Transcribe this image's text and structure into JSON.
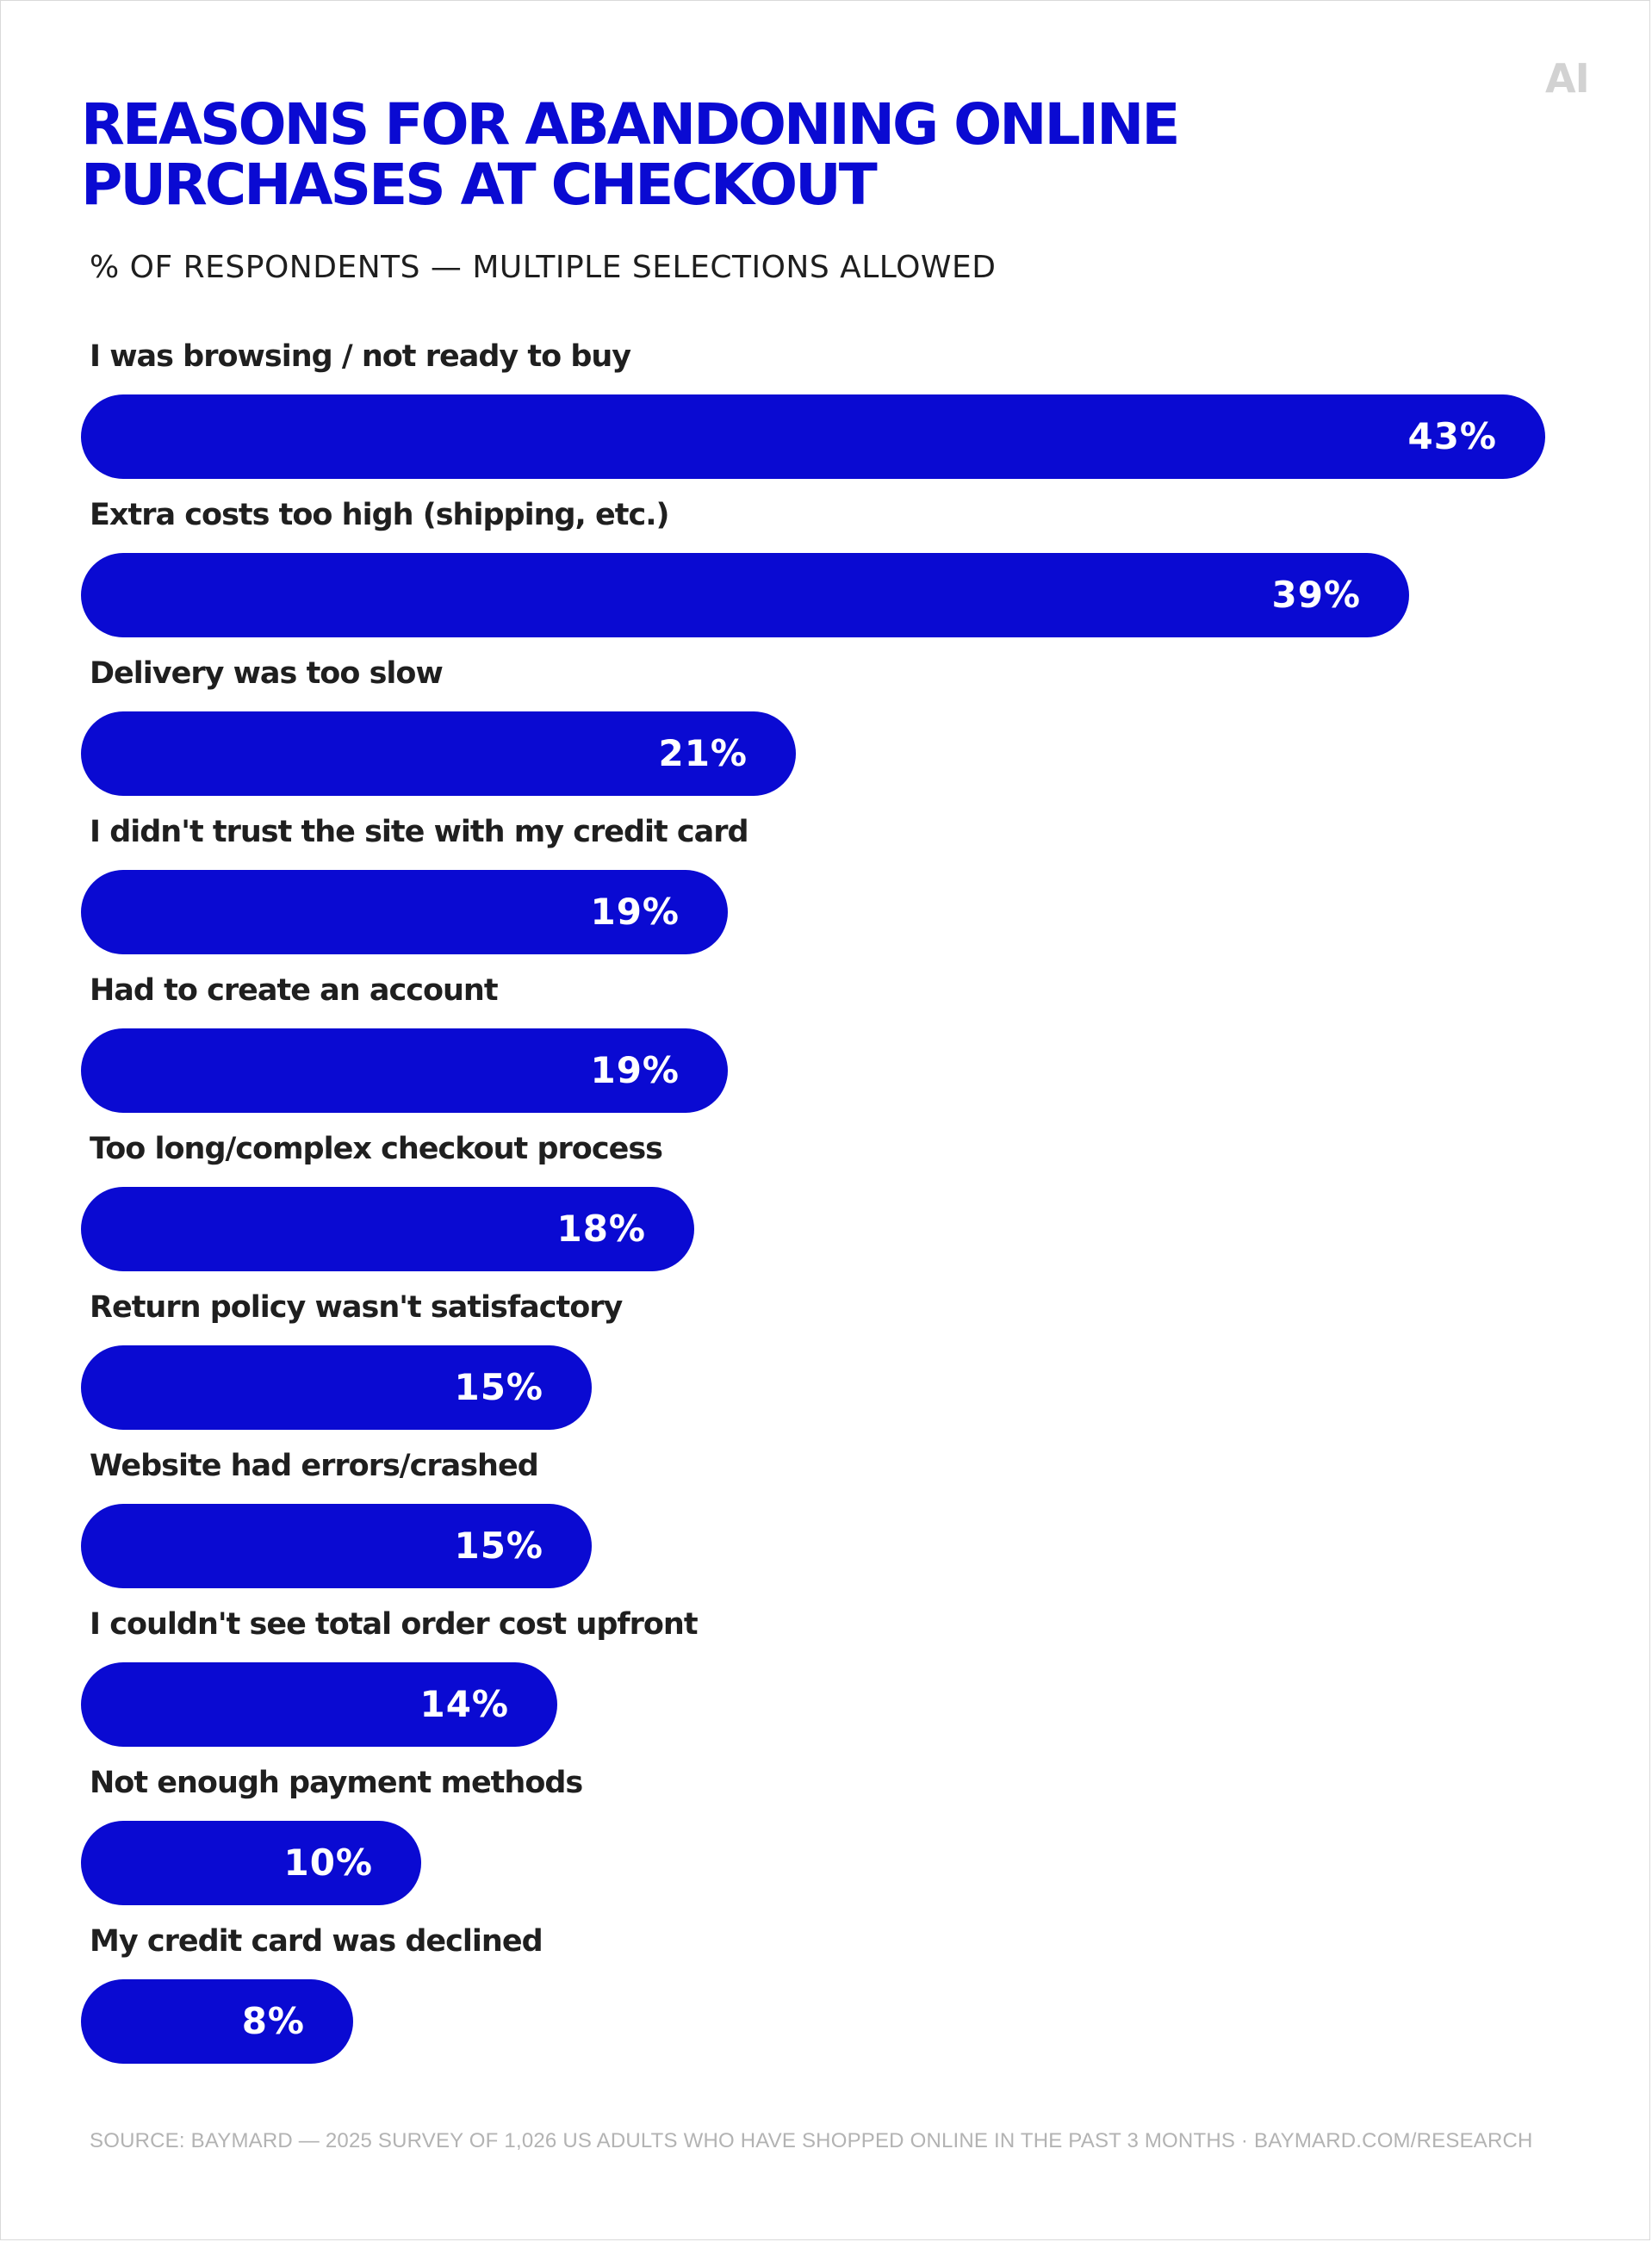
{
  "logo": "AI",
  "title_lines": [
    "REASONS FOR ABANDONING ONLINE",
    "PURCHASES AT CHECKOUT"
  ],
  "subtitle": "% OF RESPONDENTS — MULTIPLE SELECTIONS ALLOWED",
  "colors": {
    "bar": "#0a0ad2",
    "title": "#0a0ad2",
    "label": "#1f1f1f",
    "source": "#b3b3b3"
  },
  "chart_data": {
    "type": "bar",
    "orientation": "horizontal",
    "title": "REASONS FOR ABANDONING ONLINE PURCHASES AT CHECKOUT",
    "subtitle": "% OF RESPONDENTS — MULTIPLE SELECTIONS ALLOWED",
    "categories": [
      "I was browsing / not ready to buy",
      "Extra costs too high (shipping, etc.)",
      "Delivery was too slow",
      "I didn't trust the site with my credit card",
      "Had to create an account",
      "Too long/complex checkout process",
      "Return policy wasn't satisfactory",
      "Website had errors/crashed",
      "I couldn't see total order cost upfront",
      "Not enough payment methods",
      "My credit card was declined"
    ],
    "values": [
      43,
      39,
      21,
      19,
      19,
      18,
      15,
      15,
      14,
      10,
      8
    ],
    "value_labels": [
      "43%",
      "39%",
      "21%",
      "19%",
      "19%",
      "18%",
      "15%",
      "15%",
      "14%",
      "10%",
      "8%"
    ],
    "unit": "%",
    "xlim": [
      0,
      43
    ],
    "grid": false
  },
  "source": "SOURCE: BAYMARD — 2025 SURVEY OF 1,026 US ADULTS WHO HAVE SHOPPED ONLINE IN THE PAST 3 MONTHS · BAYMARD.COM/RESEARCH"
}
